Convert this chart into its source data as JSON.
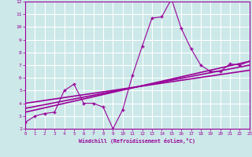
{
  "xlabel": "Windchill (Refroidissement éolien,°C)",
  "x_hours": [
    0,
    1,
    2,
    3,
    4,
    5,
    6,
    7,
    8,
    9,
    10,
    11,
    12,
    13,
    14,
    15,
    16,
    17,
    18,
    19,
    20,
    21,
    22,
    23
  ],
  "temp_line": [
    2.5,
    3.0,
    3.2,
    3.3,
    5.0,
    5.5,
    4.0,
    4.0,
    3.7,
    2.0,
    3.5,
    6.2,
    8.5,
    10.7,
    10.8,
    12.2,
    9.9,
    8.3,
    7.0,
    6.5,
    6.5,
    7.1,
    7.0,
    7.3
  ],
  "reg_line1_x": [
    0,
    23
  ],
  "reg_line1_y": [
    3.3,
    7.3
  ],
  "reg_line2_x": [
    0,
    23
  ],
  "reg_line2_y": [
    3.6,
    7.0
  ],
  "reg_line3_x": [
    0,
    23
  ],
  "reg_line3_y": [
    4.0,
    6.6
  ],
  "ylim": [
    2,
    12
  ],
  "xlim": [
    0,
    23
  ],
  "line_color": "#990099",
  "bg_color": "#cce8e8",
  "grid_color": "#ffffff",
  "marker": "+"
}
